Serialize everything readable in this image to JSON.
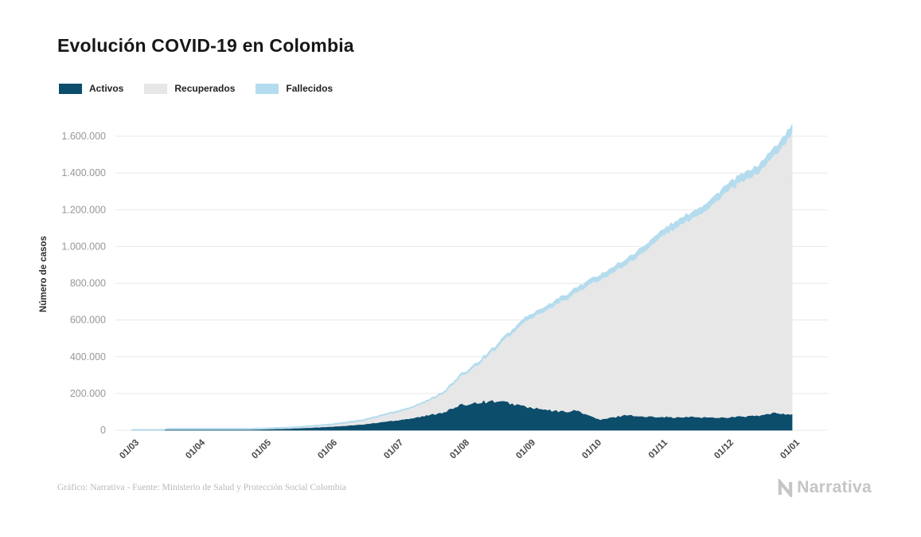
{
  "title": "Evolución COVID-19 en Colombia",
  "legend": [
    {
      "label": "Activos",
      "color": "#0c4d6c"
    },
    {
      "label": "Recuperados",
      "color": "#e7e7e7"
    },
    {
      "label": "Fallecidos",
      "color": "#b4dcee"
    }
  ],
  "footer": {
    "credit": "Gráfico: Narrativa - Fuente: Ministerio de Salud y Protección Social Colombia",
    "brand": "Narrativa"
  },
  "chart_data": {
    "type": "area",
    "stacked": true,
    "title": "Evolución COVID-19 en Colombia",
    "xlabel": "",
    "ylabel": "Número de casos",
    "grid": "horizontal",
    "legend_position": "top-left",
    "ylim": [
      0,
      1700000
    ],
    "y_ticks": [
      {
        "value": 0,
        "label": "0"
      },
      {
        "value": 200000,
        "label": "200.000"
      },
      {
        "value": 400000,
        "label": "400.000"
      },
      {
        "value": 600000,
        "label": "600.000"
      },
      {
        "value": 800000,
        "label": "800.000"
      },
      {
        "value": 1000000,
        "label": "1.000.000"
      },
      {
        "value": 1200000,
        "label": "1.200.000"
      },
      {
        "value": 1400000,
        "label": "1.400.000"
      },
      {
        "value": 1600000,
        "label": "1.600.000"
      }
    ],
    "x_tick_positions": [
      0,
      1,
      2,
      3,
      4,
      5,
      6,
      7,
      8,
      9,
      10
    ],
    "x_tick_labels": [
      "01/03",
      "01/04",
      "01/05",
      "01/06",
      "01/07",
      "01/08",
      "01/09",
      "01/10",
      "01/11",
      "01/12",
      "01/01"
    ],
    "x_unit": "months since 01/03/2020",
    "x": [
      0,
      0.5,
      1,
      1.5,
      2,
      2.5,
      3,
      3.5,
      4,
      4.25,
      4.5,
      4.75,
      5,
      5.25,
      5.5,
      5.75,
      6,
      6.25,
      6.5,
      6.75,
      7,
      7.1,
      7.25,
      7.5,
      7.75,
      8,
      8.25,
      8.5,
      8.75,
      9,
      9.25,
      9.5,
      9.75,
      10
    ],
    "series": [
      {
        "name": "Activos",
        "color": "#0c4d6c",
        "values": [
          0,
          45,
          900,
          2500,
          5800,
          11000,
          20000,
          32000,
          55000,
          67000,
          82000,
          103000,
          138000,
          155000,
          160000,
          147000,
          127000,
          112000,
          103000,
          108000,
          70000,
          58000,
          68000,
          86000,
          74000,
          76000,
          70000,
          74000,
          70000,
          71000,
          76000,
          80000,
          95000,
          88000
        ]
      },
      {
        "name": "Recuperados",
        "color": "#e7e7e7",
        "values": [
          0,
          5,
          80,
          370,
          880,
          2450,
          8060,
          19300,
          43500,
          56500,
          77200,
          107500,
          157700,
          208500,
          281300,
          376800,
          477000,
          532400,
          594900,
          644300,
          734000,
          763500,
          781800,
          821400,
          894000,
          975500,
          1033200,
          1083900,
          1142400,
          1225500,
          1277100,
          1323800,
          1407000,
          1528000
        ]
      },
      {
        "name": "Fallecidos",
        "color": "#b4dcee",
        "values": [
          0,
          0,
          20,
          130,
          320,
          550,
          940,
          1700,
          3500,
          4500,
          5800,
          7500,
          10300,
          12500,
          14700,
          17200,
          20000,
          21600,
          23100,
          24700,
          26000,
          26500,
          27200,
          28600,
          30000,
          31500,
          32800,
          34100,
          35600,
          37500,
          38900,
          40200,
          42000,
          44000
        ]
      }
    ]
  }
}
